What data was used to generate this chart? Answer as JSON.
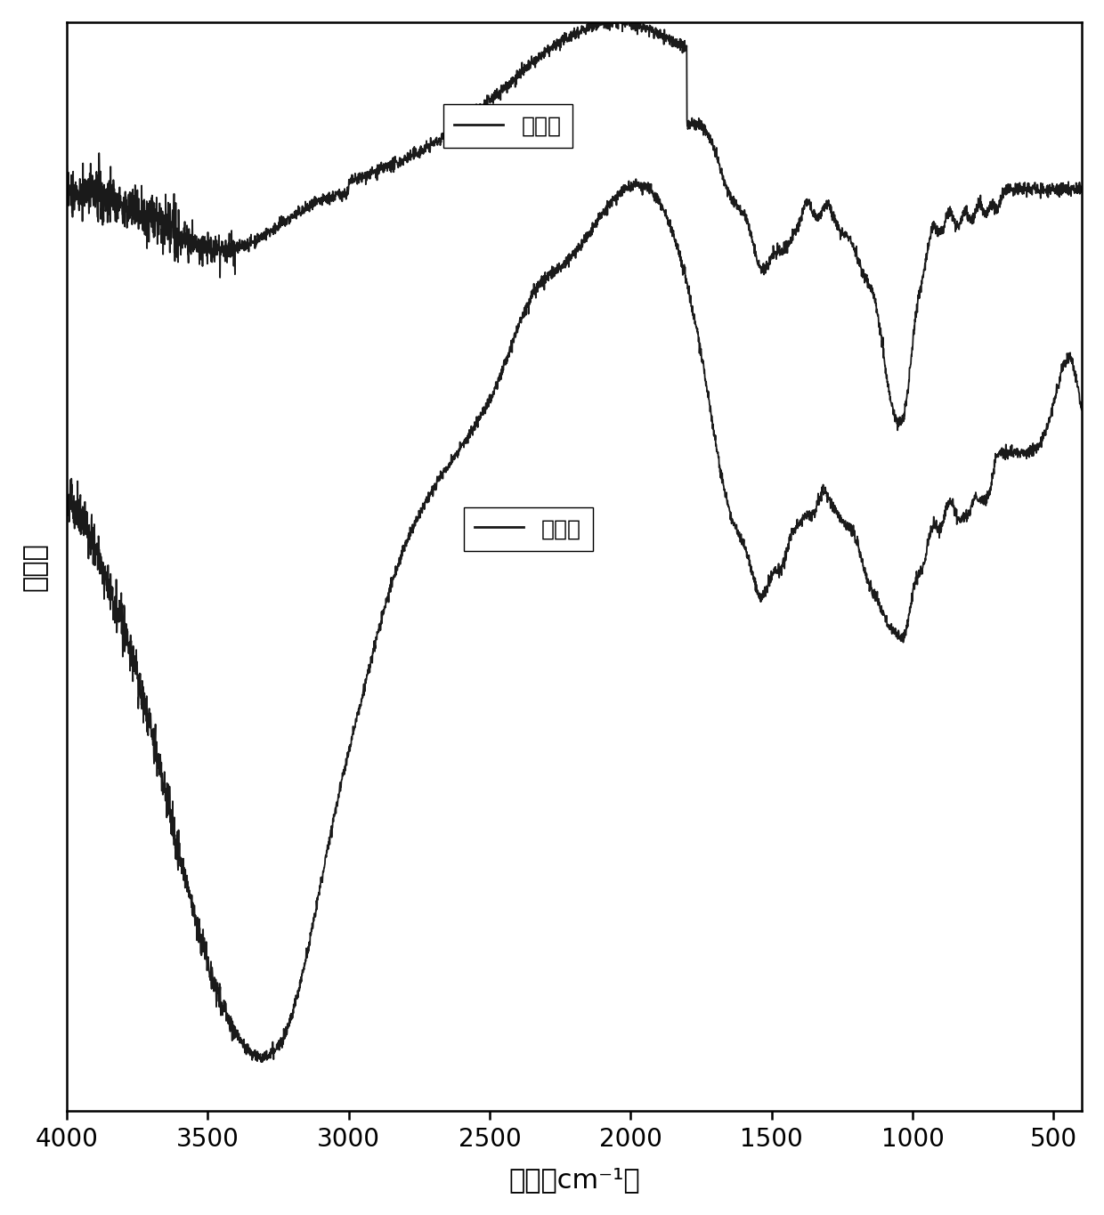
{
  "xlabel": "波数（cm⁻¹）",
  "ylabel": "透过率",
  "xlim": [
    4000,
    400
  ],
  "ylim": [
    -1.0,
    1.15
  ],
  "x_ticks": [
    4000,
    3500,
    3000,
    2500,
    2000,
    1500,
    1000,
    500
  ],
  "x_tick_labels": [
    "4000",
    "3500",
    "3000",
    "2500",
    "2000",
    "1500",
    "1000",
    "500"
  ],
  "legend1_label": "加水前",
  "legend2_label": "加水后",
  "background_color": "#ffffff",
  "line_color": "#1a1a1a",
  "figsize": [
    12.4,
    13.65
  ],
  "dpi": 100
}
